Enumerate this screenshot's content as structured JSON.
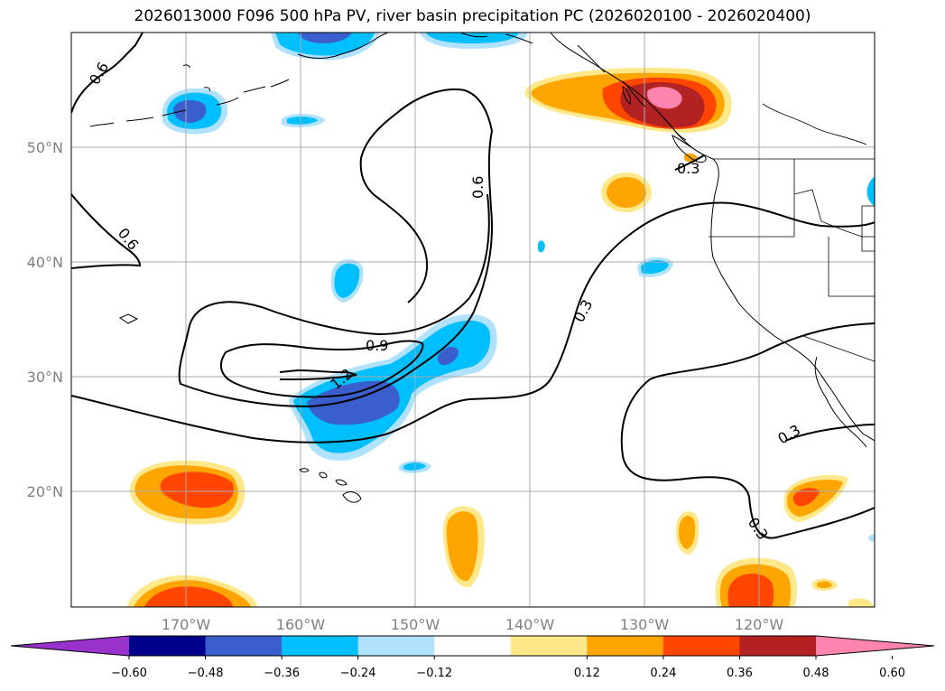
{
  "title": "2026013000 F096 500 hPa PV, river basin precipitation PC (2026020100 - 2026020400)",
  "map": {
    "lon_labels": [
      "170°W",
      "160°W",
      "150°W",
      "140°W",
      "130°W",
      "120°W"
    ],
    "lat_labels": [
      "50°N",
      "40°N",
      "30°N",
      "20°N"
    ],
    "grid_color": "#a9a9a9",
    "tick_label_color": "#808080"
  },
  "contours": {
    "labels": [
      "0.6",
      "0.6",
      "0.6",
      "0.9",
      "1.2",
      "0.3",
      "0.3",
      "0.3",
      "0.3"
    ]
  },
  "colorbar": {
    "ticks": [
      "−0.60",
      "−0.48",
      "−0.36",
      "−0.24",
      "−0.12",
      "0.12",
      "0.24",
      "0.36",
      "0.48",
      "0.60"
    ],
    "colors": [
      "#9932cc",
      "#00008b",
      "#3a5fcd",
      "#00bfff",
      "#b0e2ff",
      "#ffffff",
      "#ffe88a",
      "#ffa500",
      "#ff4500",
      "#b22222",
      "#ff85b0"
    ]
  }
}
